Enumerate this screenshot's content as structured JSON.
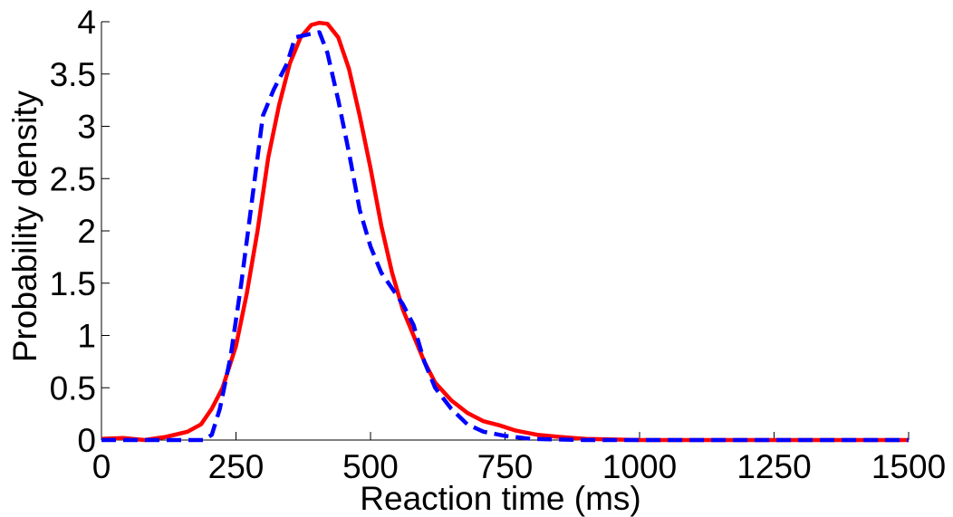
{
  "chart_data": {
    "type": "line",
    "title": "",
    "xlabel": "Reaction time (ms)",
    "ylabel": "Probability density",
    "xlim": [
      0,
      1500
    ],
    "ylim": [
      0,
      4
    ],
    "grid": false,
    "legend": "none",
    "x_ticks": [
      0,
      250,
      500,
      750,
      1000,
      1250,
      1500
    ],
    "x_tick_labels": [
      "0",
      "250",
      "500",
      "750",
      "1000",
      "1250",
      "1500"
    ],
    "y_ticks": [
      0,
      0.5,
      1,
      1.5,
      2,
      2.5,
      3,
      3.5,
      4
    ],
    "y_tick_labels": [
      "0",
      "0.5",
      "1",
      "1.5",
      "2",
      "2.5",
      "3",
      "3.5",
      "4"
    ],
    "series": [
      {
        "color": "#ff0000",
        "style": "solid",
        "points": [
          [
            0,
            0.01
          ],
          [
            40,
            0.02
          ],
          [
            80,
            0.0
          ],
          [
            120,
            0.03
          ],
          [
            160,
            0.08
          ],
          [
            185,
            0.15
          ],
          [
            205,
            0.3
          ],
          [
            225,
            0.5
          ],
          [
            250,
            0.9
          ],
          [
            270,
            1.4
          ],
          [
            290,
            2.0
          ],
          [
            310,
            2.7
          ],
          [
            330,
            3.2
          ],
          [
            350,
            3.6
          ],
          [
            370,
            3.85
          ],
          [
            390,
            3.97
          ],
          [
            405,
            3.99
          ],
          [
            420,
            3.98
          ],
          [
            440,
            3.85
          ],
          [
            460,
            3.55
          ],
          [
            480,
            3.1
          ],
          [
            500,
            2.6
          ],
          [
            520,
            2.05
          ],
          [
            540,
            1.6
          ],
          [
            560,
            1.25
          ],
          [
            580,
            1.0
          ],
          [
            600,
            0.75
          ],
          [
            620,
            0.55
          ],
          [
            650,
            0.38
          ],
          [
            680,
            0.26
          ],
          [
            710,
            0.18
          ],
          [
            740,
            0.14
          ],
          [
            770,
            0.09
          ],
          [
            810,
            0.05
          ],
          [
            850,
            0.03
          ],
          [
            900,
            0.01
          ],
          [
            1000,
            0.0
          ],
          [
            1200,
            0.0
          ],
          [
            1500,
            0.0
          ]
        ]
      },
      {
        "color": "#0000ff",
        "style": "dashed",
        "points": [
          [
            0,
            0.0
          ],
          [
            190,
            0.0
          ],
          [
            205,
            0.05
          ],
          [
            220,
            0.3
          ],
          [
            240,
            0.8
          ],
          [
            260,
            1.5
          ],
          [
            280,
            2.3
          ],
          [
            300,
            3.1
          ],
          [
            320,
            3.35
          ],
          [
            345,
            3.6
          ],
          [
            360,
            3.85
          ],
          [
            385,
            3.88
          ],
          [
            405,
            3.9
          ],
          [
            420,
            3.7
          ],
          [
            440,
            3.25
          ],
          [
            460,
            2.75
          ],
          [
            480,
            2.2
          ],
          [
            500,
            1.85
          ],
          [
            520,
            1.6
          ],
          [
            540,
            1.45
          ],
          [
            560,
            1.3
          ],
          [
            580,
            1.1
          ],
          [
            600,
            0.75
          ],
          [
            620,
            0.5
          ],
          [
            650,
            0.3
          ],
          [
            680,
            0.15
          ],
          [
            710,
            0.08
          ],
          [
            750,
            0.04
          ],
          [
            800,
            0.01
          ],
          [
            900,
            0.0
          ],
          [
            1200,
            0.0
          ],
          [
            1500,
            0.0
          ]
        ]
      }
    ]
  }
}
